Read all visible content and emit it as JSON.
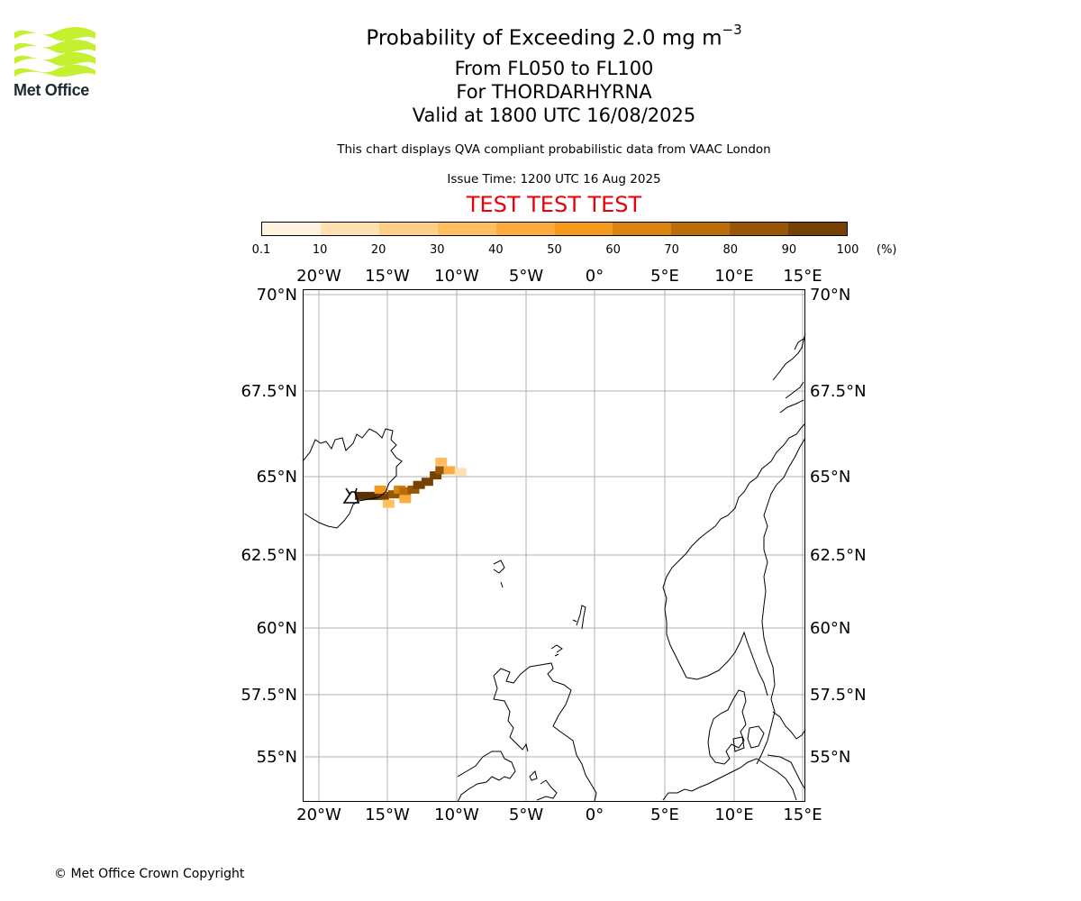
{
  "logo": {
    "text": "Met Office",
    "colors": [
      "#c4f02f"
    ]
  },
  "title": {
    "main": "Probability of Exceeding 2.0 mg m",
    "main_sup": "−3",
    "level": "From FL050 to FL100",
    "volcano": "For THORDARHYRNA",
    "valid": "Valid at 1800 UTC 16/08/2025"
  },
  "description": "This chart displays QVA compliant probabilistic data from VAAC London",
  "issue_time": "Issue Time: 1200 UTC 16 Aug 2025",
  "test_banner": "TEST TEST TEST",
  "colorbar": {
    "ticks": [
      "0.1",
      "10",
      "20",
      "30",
      "40",
      "50",
      "60",
      "70",
      "80",
      "90",
      "100"
    ],
    "unit": "(%)",
    "colors": [
      "#fff3e0",
      "#ffe0b3",
      "#ffcf8a",
      "#ffbe60",
      "#fcac3e",
      "#f59a1d",
      "#d98410",
      "#bb6d0a",
      "#985607",
      "#754105",
      "#573004"
    ]
  },
  "map": {
    "lon_labels": [
      "20°W",
      "15°W",
      "10°W",
      "5°W",
      "0°",
      "5°E",
      "10°E",
      "15°E"
    ],
    "lat_labels": [
      "70°N",
      "67.5°N",
      "65°N",
      "62.5°N",
      "60°N",
      "57.5°N",
      "55°N"
    ],
    "extent": {
      "lon": [
        -21.1,
        15.1
      ],
      "lat": [
        53.6,
        70.2
      ]
    },
    "volcano": {
      "lon": -17.2,
      "lat": 64.4
    },
    "plume_probability_pct": [
      {
        "lon": -17.0,
        "lat": 64.4,
        "p": 95
      },
      {
        "lon": -16.2,
        "lat": 64.4,
        "p": 92
      },
      {
        "lon": -15.4,
        "lat": 64.4,
        "p": 85
      },
      {
        "lon": -14.6,
        "lat": 64.45,
        "p": 75
      },
      {
        "lon": -14.2,
        "lat": 64.6,
        "p": 55
      },
      {
        "lon": -13.8,
        "lat": 64.55,
        "p": 68
      },
      {
        "lon": -13.2,
        "lat": 64.6,
        "p": 72
      },
      {
        "lon": -12.8,
        "lat": 64.75,
        "p": 80
      },
      {
        "lon": -12.2,
        "lat": 64.85,
        "p": 88
      },
      {
        "lon": -11.6,
        "lat": 65.05,
        "p": 82
      },
      {
        "lon": -11.2,
        "lat": 65.2,
        "p": 70
      },
      {
        "lon": -11.2,
        "lat": 65.45,
        "p": 25
      },
      {
        "lon": -10.6,
        "lat": 65.2,
        "p": 35
      },
      {
        "lon": -9.8,
        "lat": 65.15,
        "p": 8
      },
      {
        "lon": -15.0,
        "lat": 64.15,
        "p": 20
      },
      {
        "lon": -13.8,
        "lat": 64.3,
        "p": 30
      },
      {
        "lon": -15.6,
        "lat": 64.6,
        "p": 45
      }
    ]
  },
  "copyright": "© Met Office Crown Copyright"
}
